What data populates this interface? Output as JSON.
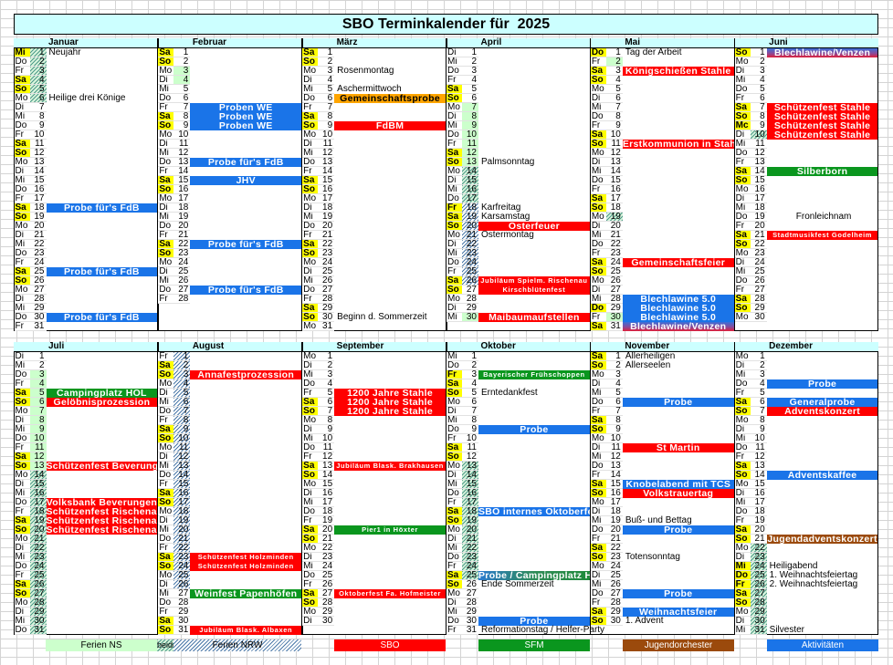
{
  "title": "SBO Terminkalender für  2025",
  "year": 2025,
  "weekday_abbr": [
    "So",
    "Mo",
    "Di",
    "Mi",
    "Do",
    "Fr",
    "Sa"
  ],
  "colors": {
    "sbo": "#ff0000",
    "sfm": "#0a961e",
    "jugend": "#9b4a0c",
    "akt": "#1a74e8",
    "orange": "#ffa500",
    "ns": "#ccffcc",
    "yellow": "#ffff00",
    "header": "#ccffff"
  },
  "months": [
    {
      "name": "Januar",
      "days": 31,
      "holidays": [
        1
      ],
      "vacations": [
        {
          "from": 1,
          "to": 6,
          "type": "beide"
        }
      ],
      "events": [
        {
          "day": 1,
          "text": "Neujahr",
          "kind": "note"
        },
        {
          "day": 6,
          "text": "Heilige drei Könige",
          "kind": "note"
        },
        {
          "day": 18,
          "text": "Probe für's FdB",
          "kind": "akt"
        },
        {
          "day": 25,
          "text": "Probe für's FdB",
          "kind": "akt"
        },
        {
          "day": 30,
          "text": "Probe für's FdB",
          "kind": "akt"
        }
      ]
    },
    {
      "name": "Februar",
      "days": 28,
      "holidays": [],
      "vacations": [
        {
          "from": 3,
          "to": 4,
          "type": "ns"
        }
      ],
      "events": [
        {
          "day": 7,
          "text": "Proben WE",
          "kind": "akt"
        },
        {
          "day": 8,
          "text": "Proben WE",
          "kind": "akt"
        },
        {
          "day": 9,
          "text": "Proben WE",
          "kind": "akt"
        },
        {
          "day": 13,
          "text": "Probe für's FdB",
          "kind": "akt"
        },
        {
          "day": 15,
          "text": "JHV",
          "kind": "akt"
        },
        {
          "day": 22,
          "text": "Probe für's FdB",
          "kind": "akt"
        },
        {
          "day": 27,
          "text": "Probe für's FdB",
          "kind": "akt"
        }
      ]
    },
    {
      "name": "März",
      "days": 31,
      "holidays": [],
      "vacations": [],
      "events": [
        {
          "day": 3,
          "text": "Rosenmontag",
          "kind": "note"
        },
        {
          "day": 5,
          "text": "Aschermittwoch",
          "kind": "note"
        },
        {
          "day": 6,
          "text": "Gemeinschaftsprobe",
          "kind": "orange"
        },
        {
          "day": 9,
          "text": "FdBM",
          "kind": "sbo"
        },
        {
          "day": 30,
          "text": "Beginn d. Sommerzeit",
          "kind": "note"
        }
      ]
    },
    {
      "name": "April",
      "days": 30,
      "holidays": [
        18
      ],
      "vacations": [
        {
          "from": 7,
          "to": 13,
          "type": "ns"
        },
        {
          "from": 14,
          "to": 17,
          "type": "beide"
        },
        {
          "from": 18,
          "to": 26,
          "type": "nrw"
        },
        {
          "from": 30,
          "to": 30,
          "type": "ns"
        }
      ],
      "events": [
        {
          "day": 13,
          "text": "Palmsonntag",
          "kind": "note"
        },
        {
          "day": 18,
          "text": "Karfreitag",
          "kind": "note"
        },
        {
          "day": 19,
          "text": "Karsamstag",
          "kind": "note"
        },
        {
          "day": 20,
          "text": "Osterfeuer",
          "kind": "sbo"
        },
        {
          "day": 21,
          "text": "Ostermontag",
          "kind": "note"
        },
        {
          "day": 26,
          "text": "Jubiläum Spielm. Rischenau",
          "kind": "sbo",
          "small": true
        },
        {
          "day": 27,
          "text": "Kirschblütenfest",
          "kind": "sbo",
          "small": true
        },
        {
          "day": 30,
          "text": "Maibaumaufstellen",
          "kind": "sbo"
        }
      ]
    },
    {
      "name": "Mai",
      "days": 31,
      "holidays": [
        1,
        29
      ],
      "vacations": [
        {
          "from": 2,
          "to": 2,
          "type": "ns"
        },
        {
          "from": 19,
          "to": 19,
          "type": "beide"
        },
        {
          "from": 30,
          "to": 30,
          "type": "ns"
        }
      ],
      "events": [
        {
          "day": 1,
          "text": "Tag der Arbeit",
          "kind": "note"
        },
        {
          "day": 3,
          "text": "Königschießen Stahle",
          "kind": "sbo"
        },
        {
          "day": 11,
          "text": "Erstkommunion in Stahle",
          "kind": "sbo"
        },
        {
          "day": 24,
          "text": "Gemeinschaftsfeier",
          "kind": "sbo"
        },
        {
          "day": 28,
          "text": "Blechlawine 5.0",
          "kind": "akt"
        },
        {
          "day": 29,
          "text": "Blechlawine 5.0",
          "kind": "akt"
        },
        {
          "day": 30,
          "text": "Blechlawine 5.0",
          "kind": "akt"
        },
        {
          "day": 31,
          "text": "Blechlawine/Venzen",
          "kind": "grad-bv"
        }
      ]
    },
    {
      "name": "Juni",
      "days": 30,
      "holidays": [
        9
      ],
      "weekday_override": {
        "9": "Mc"
      },
      "vacations": [
        {
          "from": 10,
          "to": 10,
          "type": "beide"
        }
      ],
      "events": [
        {
          "day": 1,
          "text": "Blechlawine/Venzen",
          "kind": "grad-bv"
        },
        {
          "day": 7,
          "text": "Schützenfest Stahle",
          "kind": "sbo"
        },
        {
          "day": 8,
          "text": "Schützenfest Stahle",
          "kind": "sbo"
        },
        {
          "day": 9,
          "text": "Schützenfest Stahle",
          "kind": "sbo"
        },
        {
          "day": 10,
          "text": "Schützenfest Stahle",
          "kind": "sbo"
        },
        {
          "day": 14,
          "text": "Silberborn",
          "kind": "sfm"
        },
        {
          "day": 19,
          "text": "Fronleichnam",
          "kind": "note-center"
        },
        {
          "day": 21,
          "text": "Stadtmusikfest Godelheim",
          "kind": "sbo",
          "small": true
        }
      ]
    },
    {
      "name": "Juli",
      "days": 31,
      "holidays": [],
      "vacations": [
        {
          "from": 3,
          "to": 13,
          "type": "ns"
        },
        {
          "from": 14,
          "to": 31,
          "type": "beide"
        }
      ],
      "events": [
        {
          "day": 5,
          "text": "Campingplatz HOL",
          "kind": "sfm"
        },
        {
          "day": 6,
          "text": "Gelöbnisprozession",
          "kind": "sbo"
        },
        {
          "day": 13,
          "text": "Schützenfest Beverungen",
          "kind": "sbo"
        },
        {
          "day": 17,
          "text": "Volksbank Beverungen",
          "kind": "sbo"
        },
        {
          "day": 18,
          "text": "Schützenfest Rischenau",
          "kind": "sbo"
        },
        {
          "day": 19,
          "text": "Schützenfest Rischenau",
          "kind": "sbo"
        },
        {
          "day": 20,
          "text": "Schützenfest Rischenau",
          "kind": "sbo"
        }
      ]
    },
    {
      "name": "August",
      "days": 31,
      "holidays": [],
      "vacations": [
        {
          "from": 1,
          "to": 26,
          "type": "nrw"
        }
      ],
      "events": [
        {
          "day": 3,
          "text": "Annafestprozession",
          "kind": "sbo"
        },
        {
          "day": 23,
          "text": "Schützenfest Holzminden",
          "kind": "sbo",
          "small": true
        },
        {
          "day": 24,
          "text": "Schützenfest Holzminden",
          "kind": "sbo",
          "small": true
        },
        {
          "day": 27,
          "text": "Weinfest Papenhöfen",
          "kind": "sfm"
        },
        {
          "day": 31,
          "text": "Jubiläum Blask. Albaxen",
          "kind": "sbo",
          "small": true
        }
      ]
    },
    {
      "name": "September",
      "days": 30,
      "holidays": [],
      "vacations": [],
      "events": [
        {
          "day": 5,
          "text": "1200 Jahre Stahle",
          "kind": "sbo"
        },
        {
          "day": 6,
          "text": "1200 Jahre Stahle",
          "kind": "sbo"
        },
        {
          "day": 7,
          "text": "1200 Jahre Stahle",
          "kind": "sbo"
        },
        {
          "day": 13,
          "text": "Jubiläum Blask. Brakhausen",
          "kind": "sbo",
          "small": true
        },
        {
          "day": 20,
          "text": "Pier1 in Höxter",
          "kind": "sfm",
          "small": true
        },
        {
          "day": 27,
          "text": "Oktoberfest Fa. Hofmeister",
          "kind": "sbo",
          "small": true
        }
      ]
    },
    {
      "name": "Oktober",
      "days": 31,
      "holidays": [
        3
      ],
      "vacations": [
        {
          "from": 13,
          "to": 25,
          "type": "beide"
        }
      ],
      "events": [
        {
          "day": 3,
          "text": "Bayerischer Frühschoppen",
          "kind": "sfm",
          "small": true
        },
        {
          "day": 5,
          "text": "Erntedankfest",
          "kind": "note"
        },
        {
          "day": 9,
          "text": "Probe",
          "kind": "akt"
        },
        {
          "day": 18,
          "text": "SBO internes Oktoberfest",
          "kind": "akt"
        },
        {
          "day": 25,
          "text": "Probe / Campingplatz HOL",
          "kind": "grad-bg"
        },
        {
          "day": 26,
          "text": "Ende Sommerzeit",
          "kind": "note"
        },
        {
          "day": 30,
          "text": "Probe",
          "kind": "akt"
        },
        {
          "day": 31,
          "text": "Reformationstag / Helfer-Party",
          "kind": "note"
        }
      ]
    },
    {
      "name": "November",
      "days": 30,
      "holidays": [],
      "vacations": [],
      "events": [
        {
          "day": 1,
          "text": "Allerheiligen",
          "kind": "note"
        },
        {
          "day": 2,
          "text": "Allerseelen",
          "kind": "note"
        },
        {
          "day": 6,
          "text": "Probe",
          "kind": "akt"
        },
        {
          "day": 11,
          "text": "St Martin",
          "kind": "sbo"
        },
        {
          "day": 15,
          "text": "Knobelabend mit TCS",
          "kind": "akt"
        },
        {
          "day": 16,
          "text": "Volkstrauertag",
          "kind": "sbo"
        },
        {
          "day": 19,
          "text": "Buß- und Bettag",
          "kind": "note"
        },
        {
          "day": 20,
          "text": "Probe",
          "kind": "akt"
        },
        {
          "day": 23,
          "text": "Totensonntag",
          "kind": "note"
        },
        {
          "day": 27,
          "text": "Probe",
          "kind": "akt"
        },
        {
          "day": 29,
          "text": "Weihnachtsfeier",
          "kind": "akt"
        },
        {
          "day": 30,
          "text": "1. Advent",
          "kind": "note"
        }
      ]
    },
    {
      "name": "Dezember",
      "days": 31,
      "holidays": [
        24,
        25,
        26
      ],
      "vacations": [
        {
          "from": 22,
          "to": 31,
          "type": "beide"
        }
      ],
      "events": [
        {
          "day": 4,
          "text": "Probe",
          "kind": "akt"
        },
        {
          "day": 6,
          "text": "Generalprobe",
          "kind": "akt"
        },
        {
          "day": 7,
          "text": "Adventskonzert",
          "kind": "sbo"
        },
        {
          "day": 14,
          "text": "Adventskaffee",
          "kind": "akt"
        },
        {
          "day": 21,
          "text": "Jugendadventskonzert",
          "kind": "jugend"
        },
        {
          "day": 24,
          "text": "Heiligabend",
          "kind": "note"
        },
        {
          "day": 25,
          "text": "1. Weihnachtsfeiertag",
          "kind": "note"
        },
        {
          "day": 26,
          "text": "2. Weihnachtsfeiertag",
          "kind": "note"
        },
        {
          "day": 31,
          "text": "Silvester",
          "kind": "note"
        }
      ]
    }
  ],
  "legend": [
    {
      "label": "Ferien NS",
      "type": "ns"
    },
    {
      "label": "beide",
      "type": "beide"
    },
    {
      "label": "Ferien NRW",
      "type": "nrw"
    },
    {
      "label": "SBO",
      "type": "sbo"
    },
    {
      "label": "SFM",
      "type": "sfm"
    },
    {
      "label": "Jugendorchester",
      "type": "jugend"
    },
    {
      "label": "Aktivitäten",
      "type": "akt"
    }
  ]
}
